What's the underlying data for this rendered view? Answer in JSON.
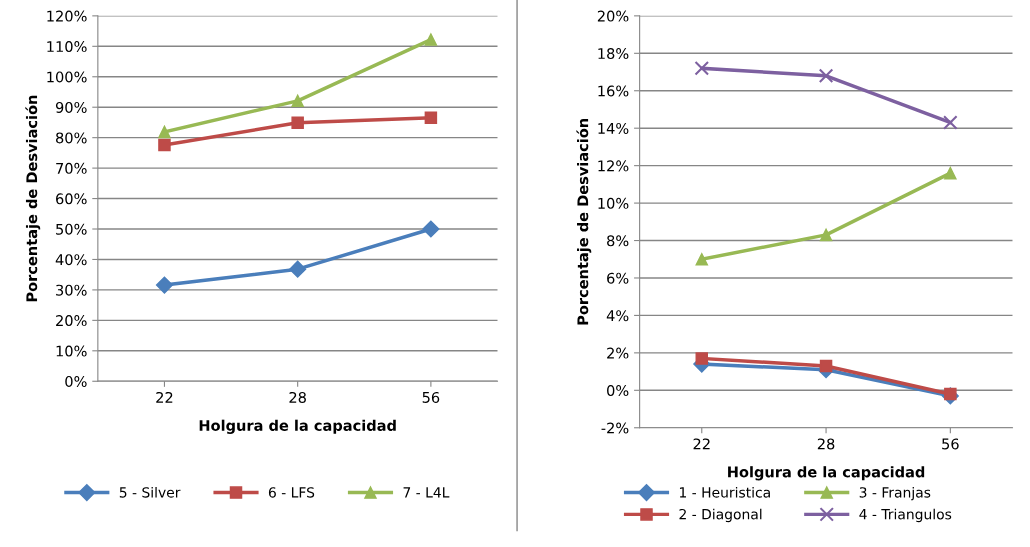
{
  "chart_data": [
    {
      "type": "line",
      "xlabel": "Holgura de la capacidad",
      "ylabel": "Porcentaje de Desviación",
      "categories": [
        "22",
        "28",
        "56"
      ],
      "series": [
        {
          "name": "5 - Silver",
          "color": "#4a7ebb",
          "marker": "diamond",
          "values": [
            31.6,
            36.8,
            50.0
          ]
        },
        {
          "name": "6 - LFS",
          "color": "#be4b48",
          "marker": "square",
          "values": [
            77.6,
            84.9,
            86.5
          ]
        },
        {
          "name": "7 - L4L",
          "color": "#98b954",
          "marker": "triangle",
          "values": [
            81.9,
            92.1,
            112.2
          ]
        }
      ],
      "ylim": [
        0,
        120
      ],
      "yticks": [
        {
          "value": 0,
          "label": "0%"
        },
        {
          "value": 10,
          "label": "10%"
        },
        {
          "value": 20,
          "label": "20%"
        },
        {
          "value": 30,
          "label": "30%"
        },
        {
          "value": 40,
          "label": "40%"
        },
        {
          "value": 50,
          "label": "50%"
        },
        {
          "value": 60,
          "label": "60%"
        },
        {
          "value": 70,
          "label": "70%"
        },
        {
          "value": 80,
          "label": "80%"
        },
        {
          "value": 90,
          "label": "90%"
        },
        {
          "value": 100,
          "label": "100%"
        },
        {
          "value": 110,
          "label": "110%"
        },
        {
          "value": 120,
          "label": "120%"
        }
      ],
      "grid": "y",
      "legend": "bottom"
    },
    {
      "type": "line",
      "xlabel": "Holgura de la capacidad",
      "ylabel": "Porcentaje de Desviación",
      "categories": [
        "22",
        "28",
        "56"
      ],
      "series": [
        {
          "name": "1 - Heuristica",
          "color": "#4a7ebb",
          "marker": "diamond",
          "values": [
            1.4,
            1.1,
            -0.3
          ]
        },
        {
          "name": "2 - Diagonal",
          "color": "#be4b48",
          "marker": "square",
          "values": [
            1.7,
            1.3,
            -0.2
          ]
        },
        {
          "name": "3 - Franjas",
          "color": "#98b954",
          "marker": "triangle",
          "values": [
            7.0,
            8.3,
            11.6
          ]
        },
        {
          "name": "4 - Triangulos",
          "color": "#7d60a0",
          "marker": "cross",
          "values": [
            17.2,
            16.8,
            14.3
          ]
        }
      ],
      "ylim": [
        -2,
        20
      ],
      "yticks": [
        {
          "value": -2,
          "label": "-2%"
        },
        {
          "value": 0,
          "label": "0%"
        },
        {
          "value": 2,
          "label": "2%"
        },
        {
          "value": 4,
          "label": "4%"
        },
        {
          "value": 6,
          "label": "6%"
        },
        {
          "value": 8,
          "label": "8%"
        },
        {
          "value": 10,
          "label": "10%"
        },
        {
          "value": 12,
          "label": "12%"
        },
        {
          "value": 14,
          "label": "14%"
        },
        {
          "value": 16,
          "label": "16%"
        },
        {
          "value": 18,
          "label": "18%"
        },
        {
          "value": 20,
          "label": "20%"
        }
      ],
      "grid": "y",
      "legend": "bottom"
    }
  ]
}
